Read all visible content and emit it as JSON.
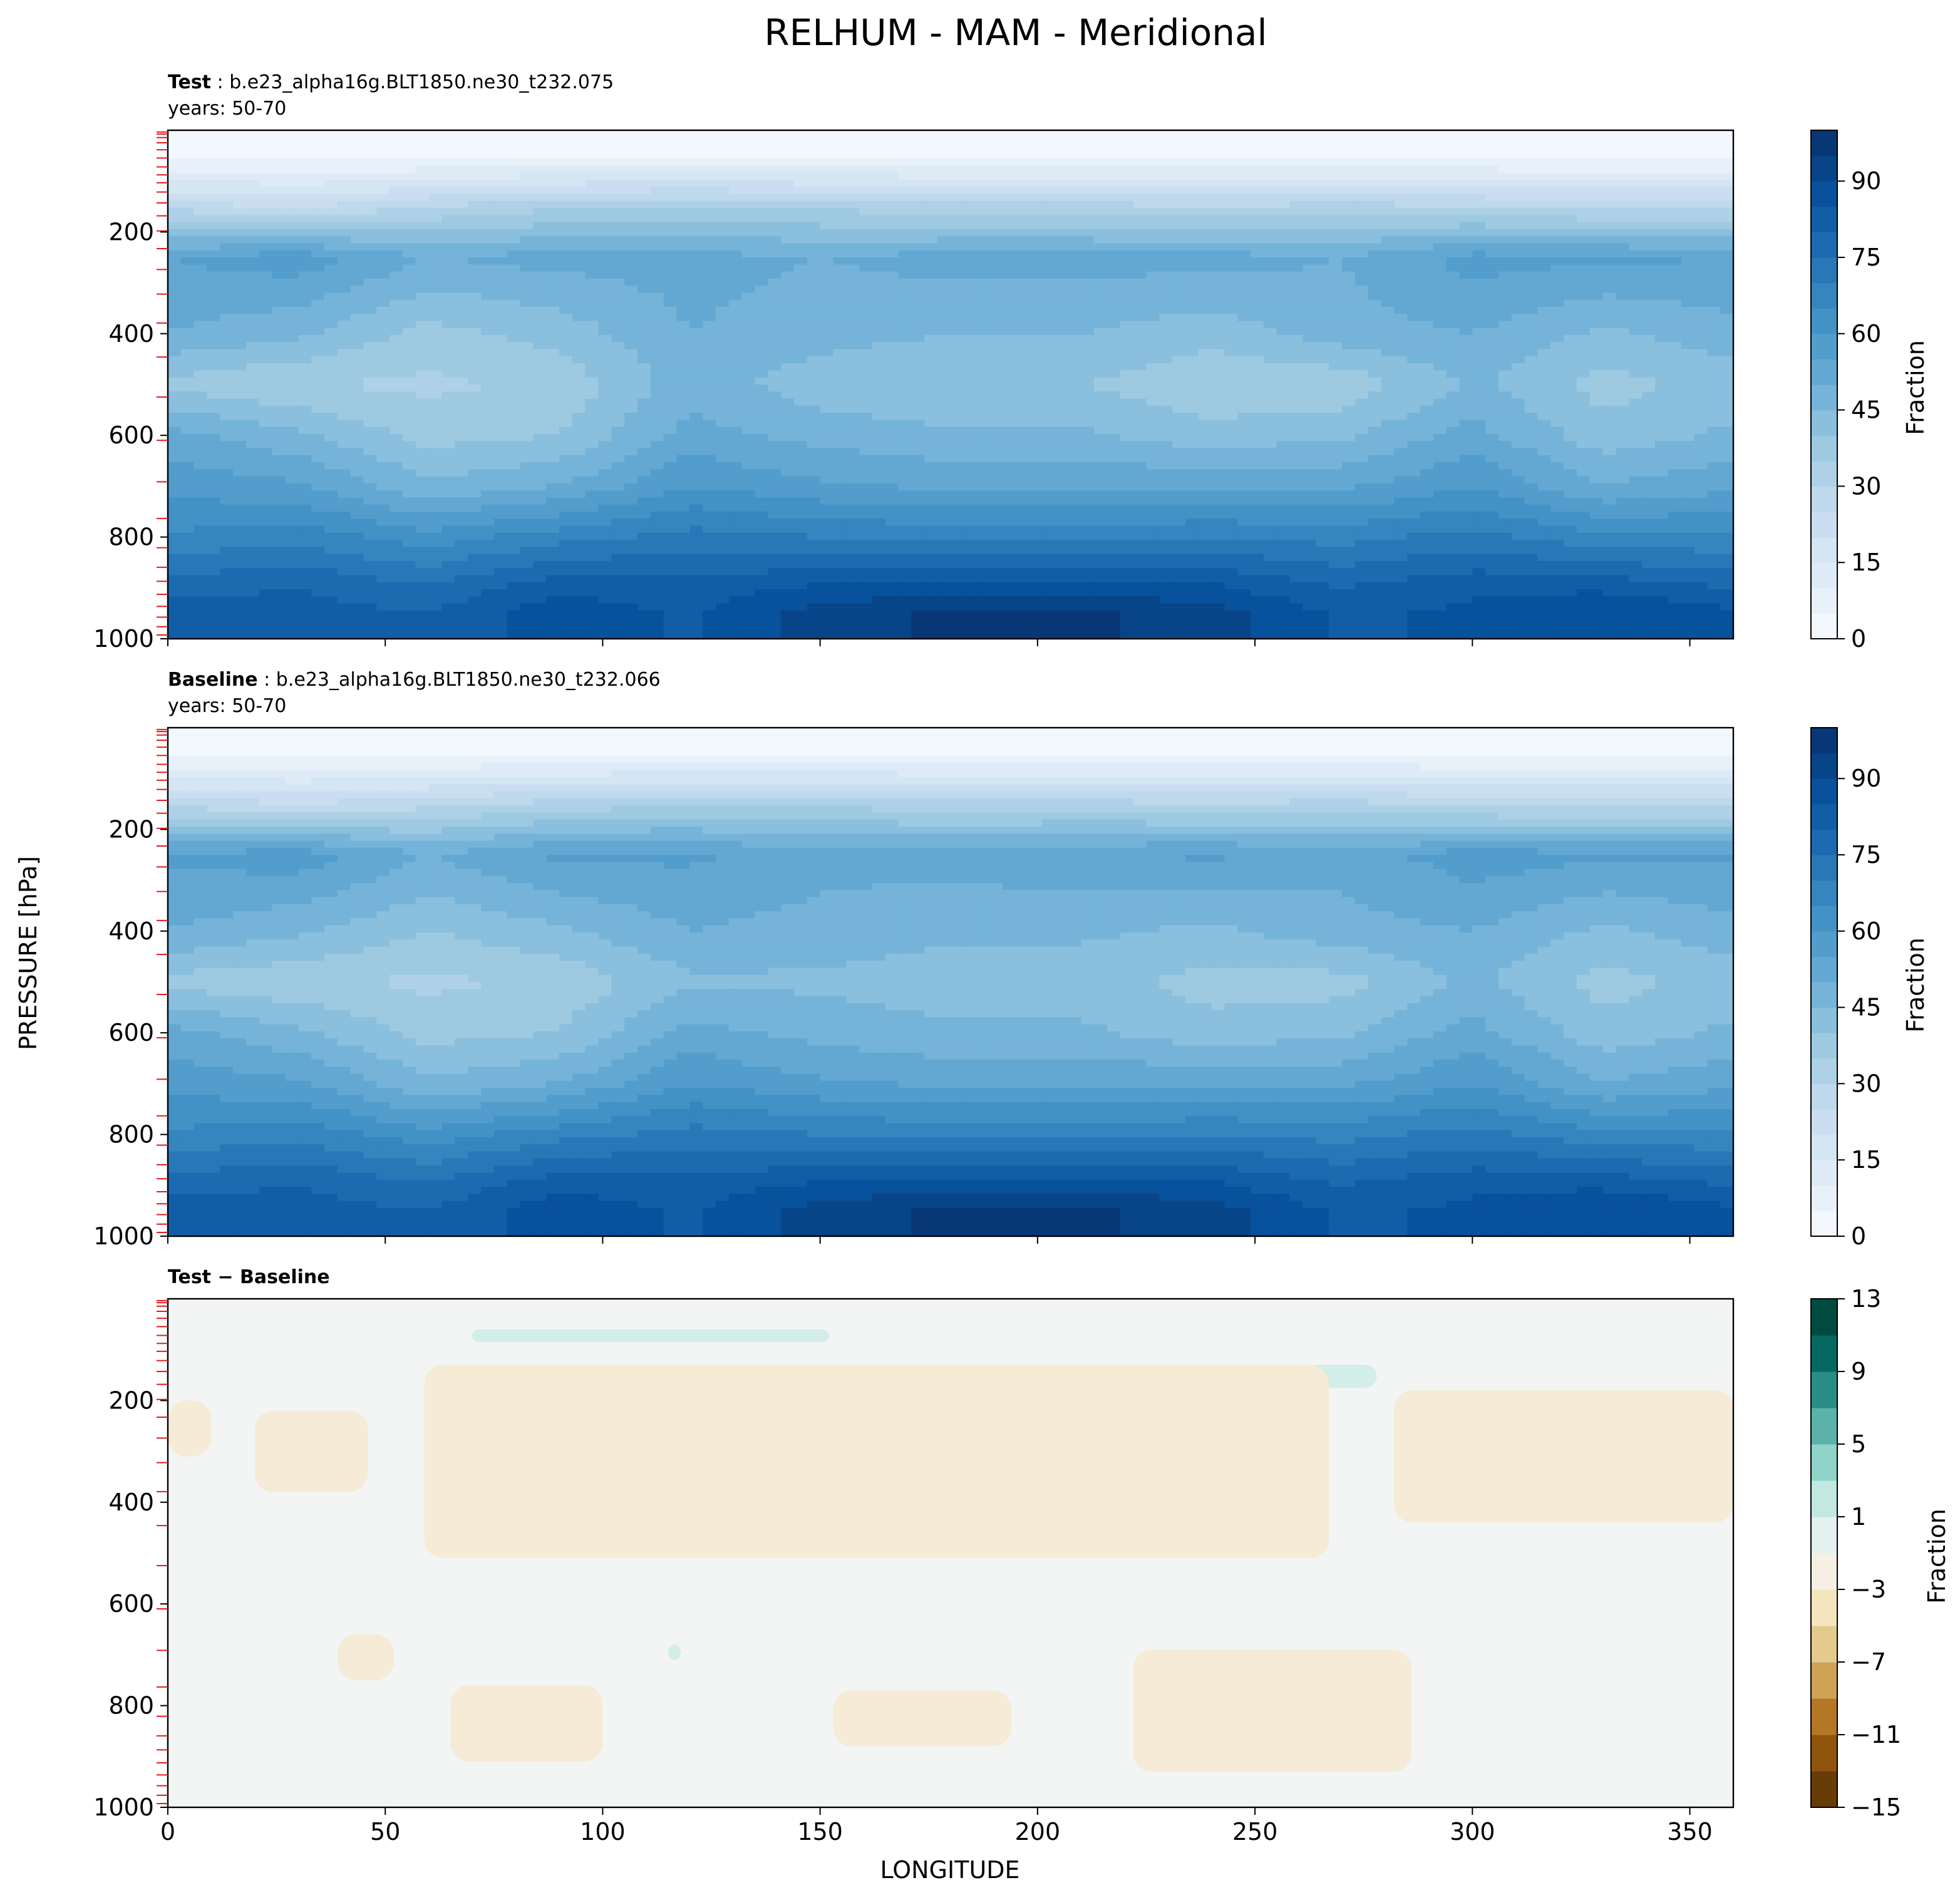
{
  "figure": {
    "title": "RELHUM - MAM - Meridional",
    "ylabel": "PRESSURE [hPa]",
    "xlabel": "LONGITUDE"
  },
  "panels": [
    {
      "id": "test",
      "header_bold": "Test",
      "header_text": ": b.e23_alpha16g.BLT1850.ne30_t232.075",
      "years": "years: 50-70",
      "colorbar": {
        "label": "Fraction",
        "ticks": [
          "0",
          "15",
          "30",
          "45",
          "60",
          "75",
          "90"
        ],
        "cmap": "Blues"
      }
    },
    {
      "id": "baseline",
      "header_bold": "Baseline",
      "header_text": ": b.e23_alpha16g.BLT1850.ne30_t232.066",
      "years": "years: 50-70",
      "colorbar": {
        "label": "Fraction",
        "ticks": [
          "0",
          "15",
          "30",
          "45",
          "60",
          "75",
          "90"
        ],
        "cmap": "Blues"
      }
    },
    {
      "id": "diff",
      "header_bold": "Test − Baseline",
      "header_text": "",
      "years": "",
      "colorbar": {
        "label": "Fraction",
        "ticks": [
          "13",
          "9",
          "5",
          "1",
          "−3",
          "−7",
          "−11",
          "−15"
        ],
        "cmap": "BrBG"
      }
    }
  ],
  "chart_data": {
    "type": "heatmap",
    "title": "RELHUM - MAM - Meridional",
    "xlabel": "LONGITUDE",
    "ylabel": "PRESSURE [hPa]",
    "xlim": [
      0,
      360
    ],
    "ylim": [
      1000,
      0
    ],
    "x_ticks": [
      0,
      50,
      100,
      150,
      200,
      250,
      300,
      350
    ],
    "y_ticks": [
      200,
      400,
      600,
      800,
      1000
    ],
    "model_levels_hpa": [
      3.6,
      7.6,
      14.4,
      24.6,
      38.3,
      54.6,
      72.0,
      87.8,
      103.3,
      121.5,
      142.9,
      168.2,
      197.9,
      232.8,
      273.9,
      322.2,
      379.1,
      445.9,
      524.7,
      609.8,
      691.4,
      763.4,
      820.9,
      859.5,
      887.0,
      912.6,
      936.2,
      957.5,
      976.3,
      992.6
    ],
    "panels": [
      {
        "name": "Test",
        "case": "b.e23_alpha16g.BLT1850.ne30_t232.075",
        "years": "50-70",
        "levels": [
          0,
          5,
          10,
          15,
          20,
          25,
          30,
          35,
          40,
          45,
          50,
          55,
          60,
          65,
          70,
          75,
          80,
          85,
          90,
          95,
          100
        ],
        "colorbar_ticks": [
          0,
          15,
          30,
          45,
          60,
          75,
          90
        ],
        "colorbar_label": "Fraction",
        "grid_pressure": [
          50,
          150,
          250,
          400,
          500,
          600,
          700,
          800,
          900,
          950
        ],
        "grid_longitude": [
          0,
          30,
          60,
          90,
          120,
          150,
          180,
          210,
          240,
          270,
          300,
          330,
          360
        ],
        "values": [
          [
            3,
            3,
            3,
            3,
            3,
            3,
            3,
            3,
            3,
            3,
            3,
            3,
            3
          ],
          [
            28,
            24,
            30,
            34,
            36,
            34,
            32,
            32,
            30,
            32,
            30,
            28,
            28
          ],
          [
            55,
            58,
            50,
            52,
            52,
            50,
            52,
            52,
            52,
            50,
            57,
            56,
            55
          ],
          [
            50,
            46,
            38,
            42,
            50,
            47,
            45,
            45,
            42,
            48,
            50,
            44,
            48
          ],
          [
            38,
            35,
            34,
            36,
            48,
            42,
            40,
            40,
            36,
            36,
            46,
            38,
            42
          ],
          [
            52,
            46,
            38,
            40,
            52,
            48,
            46,
            46,
            42,
            44,
            52,
            42,
            46
          ],
          [
            58,
            56,
            46,
            50,
            60,
            56,
            54,
            54,
            54,
            54,
            60,
            50,
            54
          ],
          [
            66,
            68,
            62,
            68,
            72,
            70,
            68,
            68,
            70,
            68,
            72,
            66,
            66
          ],
          [
            78,
            80,
            76,
            84,
            82,
            86,
            88,
            88,
            86,
            80,
            84,
            84,
            80
          ],
          [
            84,
            82,
            80,
            88,
            84,
            92,
            96,
            96,
            92,
            84,
            86,
            90,
            86
          ]
        ]
      },
      {
        "name": "Baseline",
        "case": "b.e23_alpha16g.BLT1850.ne30_t232.066",
        "years": "50-70",
        "levels": [
          0,
          5,
          10,
          15,
          20,
          25,
          30,
          35,
          40,
          45,
          50,
          55,
          60,
          65,
          70,
          75,
          80,
          85,
          90,
          95,
          100
        ],
        "colorbar_ticks": [
          0,
          15,
          30,
          45,
          60,
          75,
          90
        ],
        "colorbar_label": "Fraction",
        "grid_pressure": [
          50,
          150,
          250,
          400,
          500,
          600,
          700,
          800,
          900,
          950
        ],
        "grid_longitude": [
          0,
          30,
          60,
          90,
          120,
          150,
          180,
          210,
          240,
          270,
          300,
          330,
          360
        ],
        "values": [
          [
            3,
            3,
            3,
            3,
            3,
            3,
            3,
            3,
            3,
            3,
            3,
            3,
            3
          ],
          [
            28,
            25,
            28,
            32,
            34,
            34,
            32,
            32,
            30,
            32,
            28,
            28,
            28
          ],
          [
            56,
            58,
            50,
            56,
            56,
            52,
            52,
            54,
            56,
            52,
            58,
            56,
            56
          ],
          [
            50,
            46,
            40,
            44,
            50,
            48,
            46,
            46,
            44,
            48,
            50,
            44,
            48
          ],
          [
            38,
            36,
            34,
            36,
            44,
            44,
            42,
            42,
            38,
            38,
            46,
            38,
            42
          ],
          [
            52,
            46,
            38,
            40,
            52,
            48,
            46,
            46,
            42,
            44,
            52,
            42,
            46
          ],
          [
            58,
            56,
            46,
            50,
            60,
            56,
            54,
            54,
            54,
            54,
            60,
            50,
            54
          ],
          [
            66,
            68,
            62,
            68,
            72,
            70,
            68,
            68,
            70,
            68,
            72,
            66,
            66
          ],
          [
            78,
            80,
            76,
            84,
            82,
            86,
            88,
            88,
            86,
            80,
            84,
            84,
            80
          ],
          [
            84,
            82,
            80,
            88,
            84,
            92,
            96,
            96,
            92,
            84,
            86,
            90,
            86
          ]
        ]
      },
      {
        "name": "Test − Baseline",
        "levels": [
          -15,
          -13,
          -11,
          -9,
          -7,
          -5,
          -3,
          -1,
          1,
          3,
          5,
          7,
          9,
          11,
          13
        ],
        "colorbar_ticks": [
          13,
          9,
          5,
          1,
          -3,
          -7,
          -11,
          -15
        ],
        "colorbar_label": "Fraction",
        "background_value_range": [
          -1,
          1
        ],
        "regions": [
          {
            "sign": "positive",
            "value_range": [
              1,
              3
            ],
            "lon_range": [
              70,
              152
            ],
            "pressure_range": [
              60,
              85
            ]
          },
          {
            "sign": "positive",
            "value_range": [
              1,
              3
            ],
            "lon_range": [
              113,
              127
            ],
            "pressure_range": [
              140,
              155
            ]
          },
          {
            "sign": "positive",
            "value_range": [
              1,
              3
            ],
            "lon_range": [
              248,
              278
            ],
            "pressure_range": [
              130,
              175
            ]
          },
          {
            "sign": "positive",
            "value_range": [
              1,
              3
            ],
            "lon_range": [
              115,
              118
            ],
            "pressure_range": [
              680,
              710
            ]
          },
          {
            "sign": "negative",
            "value_range": [
              -3,
              -1
            ],
            "lon_range": [
              0,
              10
            ],
            "pressure_range": [
              200,
              310
            ]
          },
          {
            "sign": "negative",
            "value_range": [
              -3,
              -1
            ],
            "lon_range": [
              20,
              46
            ],
            "pressure_range": [
              220,
              380
            ]
          },
          {
            "sign": "negative",
            "value_range": [
              -3,
              -1
            ],
            "lon_range": [
              59,
              267
            ],
            "pressure_range": [
              130,
              510
            ]
          },
          {
            "sign": "negative",
            "value_range": [
              -3,
              -1
            ],
            "lon_range": [
              282,
              360
            ],
            "pressure_range": [
              180,
              440
            ]
          },
          {
            "sign": "negative",
            "value_range": [
              -3,
              -1
            ],
            "lon_range": [
              39,
              52
            ],
            "pressure_range": [
              660,
              750
            ]
          },
          {
            "sign": "negative",
            "value_range": [
              -3,
              -1
            ],
            "lon_range": [
              65,
              100
            ],
            "pressure_range": [
              760,
              910
            ]
          },
          {
            "sign": "negative",
            "value_range": [
              -3,
              -1
            ],
            "lon_range": [
              153,
              194
            ],
            "pressure_range": [
              770,
              880
            ]
          },
          {
            "sign": "negative",
            "value_range": [
              -3,
              -1
            ],
            "lon_range": [
              222,
              286
            ],
            "pressure_range": [
              690,
              930
            ]
          }
        ]
      }
    ]
  }
}
